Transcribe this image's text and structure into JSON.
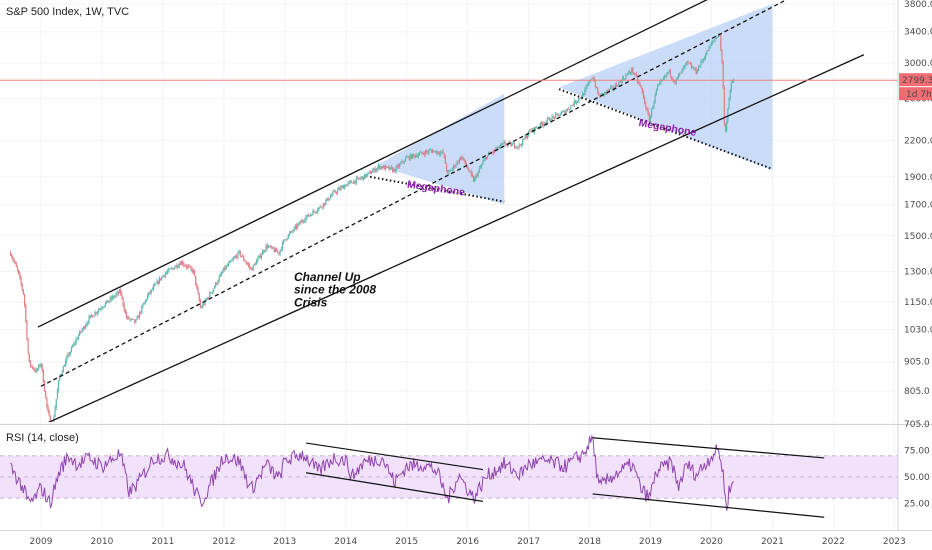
{
  "chart_data": [
    {
      "type": "candlestick",
      "title": "S&P 500 Index, 1W, TVC",
      "y_scale": "log",
      "y_ticks": [
        705.0,
        805.0,
        905.0,
        1030.0,
        1150.0,
        1300.0,
        1500.0,
        1700.0,
        1900.0,
        2200.0,
        2600.0,
        3000.0,
        3400.0,
        3800.0
      ],
      "y_tick_labels": [
        "705.0",
        "805.0",
        "905.0",
        "1030.0",
        "1150.0",
        "1300.0",
        "1500.0",
        "1700.0",
        "1900.0",
        "2200.0",
        "2600.0",
        "3000.0",
        "3400.0",
        "3800.0"
      ],
      "last_price": 2799.3,
      "last_price_label": "2799.3",
      "countdown_label": "1d 7h",
      "x_ticks": [
        "2009",
        "2010",
        "2011",
        "2012",
        "2013",
        "2014",
        "2015",
        "2016",
        "2017",
        "2018",
        "2019",
        "2020",
        "2021",
        "2022",
        "2023"
      ],
      "x_tick_values": [
        2009.0,
        2010.0,
        2011.0,
        2012.0,
        2013.0,
        2014.0,
        2015.0,
        2016.0,
        2017.0,
        2018.0,
        2019.0,
        2020.0,
        2021.0,
        2022.0,
        2023.0
      ],
      "price_path": [
        [
          2008.5,
          1400
        ],
        [
          2008.62,
          1300
        ],
        [
          2008.72,
          1180
        ],
        [
          2008.8,
          900
        ],
        [
          2008.92,
          870
        ],
        [
          2009.0,
          900
        ],
        [
          2009.1,
          750
        ],
        [
          2009.18,
          690
        ],
        [
          2009.3,
          850
        ],
        [
          2009.45,
          930
        ],
        [
          2009.6,
          1000
        ],
        [
          2009.8,
          1080
        ],
        [
          2010.0,
          1130
        ],
        [
          2010.3,
          1200
        ],
        [
          2010.4,
          1080
        ],
        [
          2010.55,
          1060
        ],
        [
          2010.75,
          1180
        ],
        [
          2011.0,
          1280
        ],
        [
          2011.3,
          1350
        ],
        [
          2011.5,
          1300
        ],
        [
          2011.62,
          1120
        ],
        [
          2011.8,
          1200
        ],
        [
          2012.0,
          1310
        ],
        [
          2012.25,
          1400
        ],
        [
          2012.45,
          1310
        ],
        [
          2012.7,
          1440
        ],
        [
          2012.9,
          1400
        ],
        [
          2013.0,
          1480
        ],
        [
          2013.3,
          1600
        ],
        [
          2013.6,
          1690
        ],
        [
          2013.8,
          1780
        ],
        [
          2014.0,
          1840
        ],
        [
          2014.3,
          1900
        ],
        [
          2014.55,
          1980
        ],
        [
          2014.8,
          1950
        ],
        [
          2015.0,
          2050
        ],
        [
          2015.4,
          2110
        ],
        [
          2015.6,
          2090
        ],
        [
          2015.67,
          1920
        ],
        [
          2015.9,
          2060
        ],
        [
          2016.1,
          1870
        ],
        [
          2016.3,
          2060
        ],
        [
          2016.6,
          2170
        ],
        [
          2016.85,
          2150
        ],
        [
          2017.0,
          2270
        ],
        [
          2017.3,
          2380
        ],
        [
          2017.6,
          2470
        ],
        [
          2017.9,
          2650
        ],
        [
          2018.05,
          2850
        ],
        [
          2018.15,
          2620
        ],
        [
          2018.4,
          2720
        ],
        [
          2018.7,
          2920
        ],
        [
          2018.85,
          2700
        ],
        [
          2018.98,
          2380
        ],
        [
          2019.1,
          2700
        ],
        [
          2019.3,
          2900
        ],
        [
          2019.4,
          2780
        ],
        [
          2019.6,
          3000
        ],
        [
          2019.75,
          2900
        ],
        [
          2020.0,
          3240
        ],
        [
          2020.13,
          3390
        ],
        [
          2020.18,
          2950
        ],
        [
          2020.22,
          2230
        ],
        [
          2020.27,
          2500
        ],
        [
          2020.33,
          2780
        ],
        [
          2020.37,
          2799.3
        ]
      ],
      "annotations": [
        {
          "text": "Channel Up",
          "x": 2013.15,
          "y": 1250
        },
        {
          "text": "since the 2008",
          "x": 2013.15,
          "y": 1190
        },
        {
          "text": "Crisis",
          "x": 2013.15,
          "y": 1130
        },
        {
          "text": "Megaphone",
          "x": 2015.0,
          "y": 1820
        },
        {
          "text": "Megaphone",
          "x": 2018.8,
          "y": 2330
        }
      ],
      "channel_lines": [
        {
          "style": "solid",
          "points": [
            [
              2008.95,
              1040
            ],
            [
              2020.0,
              3900
            ]
          ]
        },
        {
          "style": "dashed",
          "points": [
            [
              2009.0,
              820
            ],
            [
              2021.3,
              3900
            ]
          ]
        },
        {
          "style": "solid",
          "points": [
            [
              2009.0,
              700
            ],
            [
              2022.5,
              3100
            ]
          ]
        }
      ],
      "megaphones": [
        {
          "fill": [
            [
              2014.5,
              1990
            ],
            [
              2016.6,
              2650
            ],
            [
              2016.6,
              1700
            ]
          ],
          "lower": [
            [
              2014.4,
              1900
            ],
            [
              2016.6,
              1720
            ]
          ]
        },
        {
          "fill": [
            [
              2017.5,
              2720
            ],
            [
              2021.0,
              3800
            ],
            [
              2021.0,
              1950
            ]
          ],
          "lower": [
            [
              2017.5,
              2700
            ],
            [
              2021.0,
              1960
            ]
          ]
        }
      ]
    },
    {
      "type": "line",
      "title": "RSI (14, close)",
      "y_ticks": [
        25.0,
        50.0,
        75.0
      ],
      "y_tick_labels": [
        "25.00",
        "50.00",
        "75.00"
      ],
      "band": [
        30,
        70
      ],
      "rsi_path": [
        [
          2008.5,
          60
        ],
        [
          2008.7,
          40
        ],
        [
          2008.8,
          25
        ],
        [
          2008.9,
          30
        ],
        [
          2009.0,
          40
        ],
        [
          2009.15,
          25
        ],
        [
          2009.3,
          55
        ],
        [
          2009.45,
          70
        ],
        [
          2009.6,
          62
        ],
        [
          2009.8,
          68
        ],
        [
          2010.0,
          60
        ],
        [
          2010.3,
          72
        ],
        [
          2010.45,
          35
        ],
        [
          2010.6,
          45
        ],
        [
          2010.85,
          68
        ],
        [
          2011.1,
          70
        ],
        [
          2011.35,
          60
        ],
        [
          2011.62,
          25
        ],
        [
          2011.8,
          45
        ],
        [
          2012.0,
          70
        ],
        [
          2012.25,
          65
        ],
        [
          2012.45,
          38
        ],
        [
          2012.7,
          62
        ],
        [
          2012.9,
          48
        ],
        [
          2013.0,
          65
        ],
        [
          2013.3,
          72
        ],
        [
          2013.55,
          55
        ],
        [
          2013.8,
          68
        ],
        [
          2014.0,
          66
        ],
        [
          2014.1,
          50
        ],
        [
          2014.3,
          64
        ],
        [
          2014.6,
          68
        ],
        [
          2014.8,
          45
        ],
        [
          2015.0,
          60
        ],
        [
          2015.3,
          62
        ],
        [
          2015.5,
          55
        ],
        [
          2015.67,
          28
        ],
        [
          2015.85,
          52
        ],
        [
          2016.1,
          30
        ],
        [
          2016.3,
          50
        ],
        [
          2016.6,
          62
        ],
        [
          2016.85,
          52
        ],
        [
          2017.0,
          62
        ],
        [
          2017.3,
          65
        ],
        [
          2017.6,
          60
        ],
        [
          2017.9,
          72
        ],
        [
          2018.05,
          87
        ],
        [
          2018.15,
          40
        ],
        [
          2018.4,
          52
        ],
        [
          2018.7,
          62
        ],
        [
          2018.85,
          38
        ],
        [
          2018.98,
          30
        ],
        [
          2019.1,
          55
        ],
        [
          2019.35,
          64
        ],
        [
          2019.45,
          40
        ],
        [
          2019.6,
          62
        ],
        [
          2019.75,
          52
        ],
        [
          2020.0,
          70
        ],
        [
          2020.12,
          76
        ],
        [
          2020.2,
          50
        ],
        [
          2020.24,
          20
        ],
        [
          2020.3,
          40
        ],
        [
          2020.37,
          45
        ]
      ],
      "trend_lines": [
        [
          [
            2013.35,
            82
          ],
          [
            2016.25,
            57
          ]
        ],
        [
          [
            2013.35,
            54
          ],
          [
            2016.25,
            27
          ]
        ],
        [
          [
            2018.05,
            87
          ],
          [
            2021.85,
            68
          ]
        ],
        [
          [
            2018.05,
            34
          ],
          [
            2021.85,
            12
          ]
        ]
      ]
    }
  ]
}
